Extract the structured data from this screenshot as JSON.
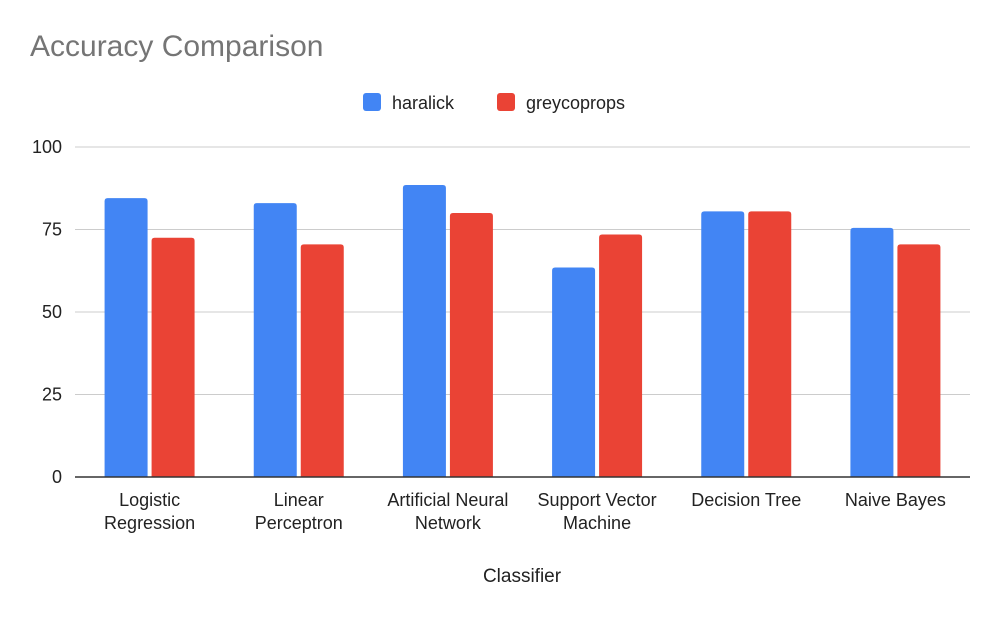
{
  "chart_data": {
    "type": "bar",
    "title": "Accuracy Comparison",
    "xlabel": "Classifier",
    "ylabel": "",
    "categories": [
      [
        "Logistic",
        "Regression"
      ],
      [
        "Linear",
        "Perceptron"
      ],
      [
        "Artificial Neural",
        "Network"
      ],
      [
        "Support Vector",
        "Machine"
      ],
      [
        "Decision Tree"
      ],
      [
        "Naive Bayes"
      ]
    ],
    "series": [
      {
        "name": "haralick",
        "color": "#4285F4",
        "values": [
          84.5,
          83,
          88.5,
          63.5,
          80.5,
          75.5
        ]
      },
      {
        "name": "greycoprops",
        "color": "#EA4335",
        "values": [
          72.5,
          70.5,
          80,
          73.5,
          80.5,
          70.5
        ]
      }
    ],
    "ylim": [
      0,
      100
    ],
    "yticks": [
      0,
      25,
      50,
      75,
      100
    ],
    "grid": true,
    "legend_position": "top-center"
  }
}
